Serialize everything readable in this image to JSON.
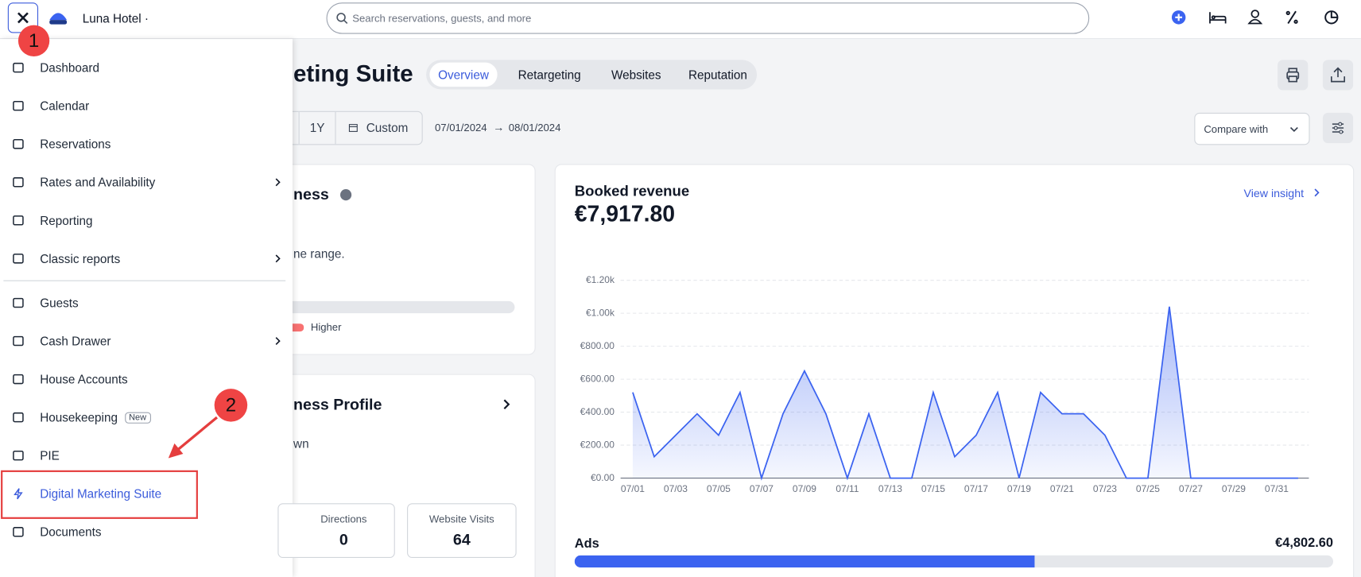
{
  "header": {
    "hotel": "Luna Hotel ·",
    "search_placeholder": "Search reservations, guests, and more"
  },
  "sidebar": {
    "items": [
      {
        "label": "Dashboard"
      },
      {
        "label": "Calendar"
      },
      {
        "label": "Reservations"
      },
      {
        "label": "Rates and Availability",
        "submenu": true
      },
      {
        "label": "Reporting"
      },
      {
        "label": "Classic reports",
        "submenu": true
      },
      {
        "label": "Guests"
      },
      {
        "label": "Cash Drawer",
        "submenu": true
      },
      {
        "label": "House Accounts"
      },
      {
        "label": "Housekeeping",
        "badge": "New"
      },
      {
        "label": "PIE"
      },
      {
        "label": "Digital Marketing Suite",
        "active": true
      },
      {
        "label": "Documents"
      }
    ]
  },
  "annotations": [
    "1",
    "2"
  ],
  "page": {
    "title": "eting Suite",
    "tabs": [
      "Overview",
      "Retargeting",
      "Websites",
      "Reputation"
    ],
    "active_tab": 0,
    "ranges": [
      "1Y",
      "Custom"
    ],
    "date_from": "07/01/2024",
    "date_sep": "→",
    "date_to": "08/01/2024",
    "compare": "Compare with"
  },
  "cards": {
    "card1": {
      "title": "ness",
      "text": "ne range.",
      "legend": "Higher"
    },
    "card2": {
      "title": "ness Profile",
      "text": "wn",
      "stats": [
        {
          "label": "Directions",
          "value": 0
        },
        {
          "label": "Website Visits",
          "value": 64
        }
      ]
    }
  },
  "chart_data": {
    "type": "area",
    "title": "Booked revenue",
    "total": 7917.8,
    "total_label": "€7,917.80",
    "link": "View insight",
    "categories": [
      "07/01",
      null,
      "07/03",
      null,
      "07/05",
      null,
      "07/07",
      null,
      "07/09",
      null,
      "07/11",
      null,
      "07/13",
      null,
      "07/15",
      null,
      "07/17",
      null,
      "07/19",
      null,
      "07/21",
      null,
      "07/23",
      null,
      "07/25",
      null,
      "07/27",
      null,
      "07/29",
      null,
      "07/31",
      null
    ],
    "values": [
      520,
      130,
      260,
      390,
      260,
      520,
      0,
      390,
      650,
      390,
      0,
      390,
      0,
      0,
      520,
      130,
      260,
      520,
      0,
      520,
      390,
      390,
      260,
      0,
      0,
      1040,
      0,
      0,
      0,
      0,
      0,
      0
    ],
    "ylim": [
      0,
      1200
    ],
    "yticks": [
      {
        "value": 0,
        "label": "€0.00"
      },
      {
        "value": 200,
        "label": "€200.00"
      },
      {
        "value": 400,
        "label": "€400.00"
      },
      {
        "value": 600,
        "label": "€600.00"
      },
      {
        "value": 800,
        "label": "€800.00"
      },
      {
        "value": 1000,
        "label": "€1.00k"
      },
      {
        "value": 1200,
        "label": "€1.20k"
      }
    ],
    "color": "#3b63f0",
    "grid": true,
    "ads": {
      "label": "Ads",
      "value": 4802.6,
      "value_label": "€4,802.60"
    }
  }
}
